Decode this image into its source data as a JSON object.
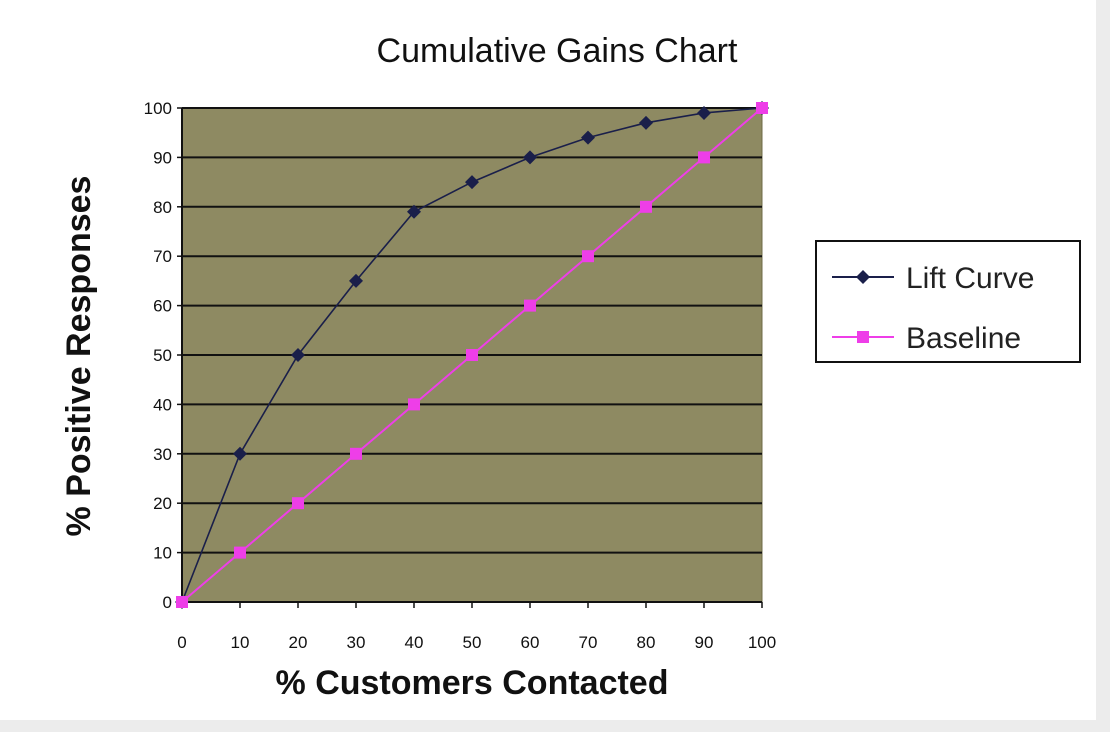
{
  "chart_data": {
    "type": "line",
    "title": "Cumulative Gains Chart",
    "xlabel": "% Customers Contacted",
    "ylabel": "% Positive Responses",
    "xlim": [
      0,
      100
    ],
    "ylim": [
      0,
      100
    ],
    "x_ticks": [
      "0",
      "10",
      "20",
      "30",
      "40",
      "50",
      "60",
      "70",
      "80",
      "90",
      "100"
    ],
    "y_ticks": [
      "0",
      "10",
      "20",
      "30",
      "40",
      "50",
      "60",
      "70",
      "80",
      "90",
      "100"
    ],
    "grid": true,
    "legend_position": "right",
    "plot_background": "#8e8a62",
    "series": [
      {
        "name": "Lift Curve",
        "color": "#1a1f4a",
        "marker": "diamond",
        "x": [
          0,
          10,
          20,
          30,
          40,
          50,
          60,
          70,
          80,
          90,
          100
        ],
        "values": [
          0,
          30,
          50,
          65,
          79,
          85,
          90,
          94,
          97,
          99,
          100
        ]
      },
      {
        "name": "Baseline",
        "color": "#ee3ee8",
        "marker": "square",
        "x": [
          0,
          10,
          20,
          30,
          40,
          50,
          60,
          70,
          80,
          90,
          100
        ],
        "values": [
          0,
          10,
          20,
          30,
          40,
          50,
          60,
          70,
          80,
          90,
          100
        ]
      }
    ]
  }
}
